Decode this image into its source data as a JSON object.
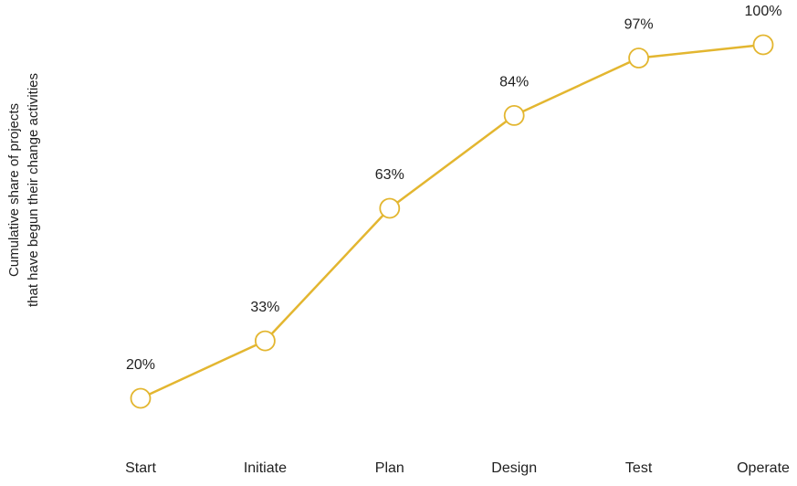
{
  "chart_data": {
    "type": "line",
    "categories": [
      "Start",
      "Initiate",
      "Plan",
      "Design",
      "Test",
      "Operate"
    ],
    "values": [
      20,
      33,
      63,
      84,
      97,
      100
    ],
    "value_labels": [
      "20%",
      "33%",
      "63%",
      "84%",
      "97%",
      "100%"
    ],
    "ylabel_lines": [
      "Cumulative share of projects",
      "that have begun their change activities"
    ],
    "xlabel": "",
    "ylim": [
      0,
      100
    ],
    "grid": false,
    "legend": "none",
    "line_color": "#e3b630",
    "marker_fill": "#ffffff",
    "marker_style": "hollow-circle"
  }
}
